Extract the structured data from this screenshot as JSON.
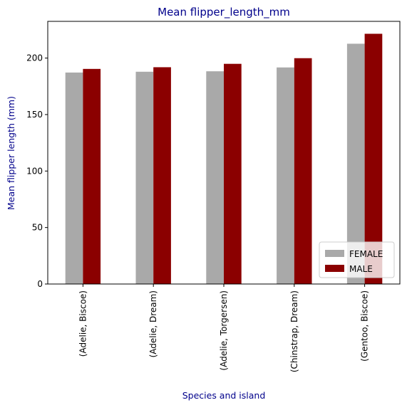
{
  "chart_data": {
    "type": "bar",
    "title": "Mean flipper_length_mm",
    "xlabel": "Species and island",
    "ylabel": "Mean flipper length (mm)",
    "categories": [
      "(Adelie, Biscoe)",
      "(Adelie, Dream)",
      "(Adelie, Torgersen)",
      "(Chinstrap, Dream)",
      "(Gentoo, Biscoe)"
    ],
    "series": [
      {
        "name": "FEMALE",
        "values": [
          187.2,
          187.9,
          188.3,
          191.7,
          212.7
        ],
        "color": "#a9a9a9"
      },
      {
        "name": "MALE",
        "values": [
          190.4,
          191.9,
          194.9,
          199.9,
          221.5
        ],
        "color": "#8b0000"
      }
    ],
    "ylim": [
      0,
      232.5
    ],
    "yticks": [
      0,
      50,
      100,
      150,
      200
    ],
    "grid": false,
    "legend_position": "lower-right",
    "title_color": "#00008b",
    "label_color": "#00008b"
  }
}
